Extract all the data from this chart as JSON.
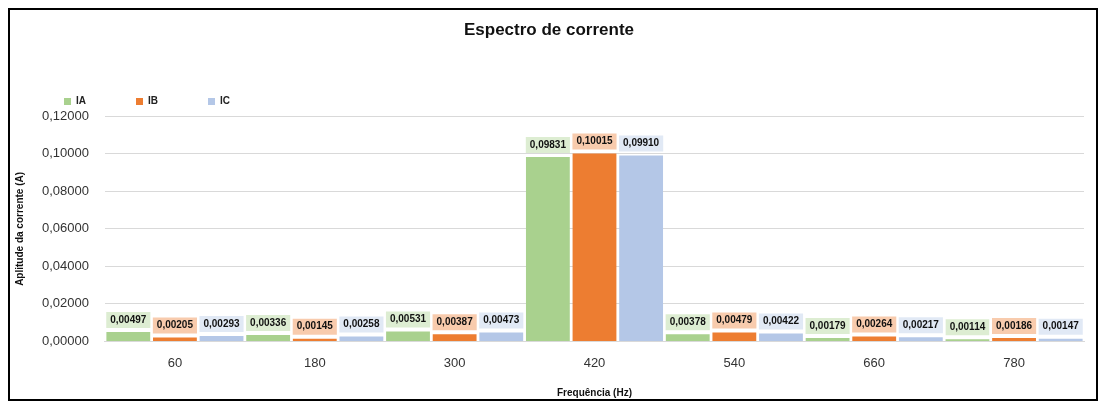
{
  "chart_data": {
    "type": "bar",
    "title": "Espectro de corrente",
    "xlabel": "Frequência (Hz)",
    "ylabel": "Aplitude da corrente (A)",
    "categories": [
      "60",
      "180",
      "300",
      "420",
      "540",
      "660",
      "780"
    ],
    "series": [
      {
        "name": "IA",
        "color": "#a9d18e",
        "values": [
          0.00497,
          0.00336,
          0.00531,
          0.09831,
          0.00378,
          0.00179,
          0.00114
        ],
        "value_labels": [
          "0,00497",
          "0,00336",
          "0,00531",
          "0,09831",
          "0,00378",
          "0,00179",
          "0,00114"
        ]
      },
      {
        "name": "IB",
        "color": "#ed7d31",
        "values": [
          0.00205,
          0.00145,
          0.00387,
          0.10015,
          0.00479,
          0.00264,
          0.00186
        ],
        "value_labels": [
          "0,00205",
          "0,00145",
          "0,00387",
          "0,10015",
          "0,00479",
          "0,00264",
          "0,00186"
        ]
      },
      {
        "name": "IC",
        "color": "#b4c7e7",
        "values": [
          0.00293,
          0.00258,
          0.00473,
          0.0991,
          0.00422,
          0.00217,
          0.00147
        ],
        "value_labels": [
          "0,00293",
          "0,00258",
          "0,00473",
          "0,09910",
          "0,00422",
          "0,00217",
          "0,00147"
        ]
      }
    ],
    "ylim": [
      0,
      0.12
    ],
    "yticks": [
      {
        "value": 0,
        "label": "0,00000"
      },
      {
        "value": 0.02,
        "label": "0,02000"
      },
      {
        "value": 0.04,
        "label": "0,04000"
      },
      {
        "value": 0.06,
        "label": "0,06000"
      },
      {
        "value": 0.08,
        "label": "0,08000"
      },
      {
        "value": 0.1,
        "label": "0,10000"
      },
      {
        "value": 0.12,
        "label": "0,12000"
      }
    ],
    "grid": "y",
    "legend": "top left"
  }
}
